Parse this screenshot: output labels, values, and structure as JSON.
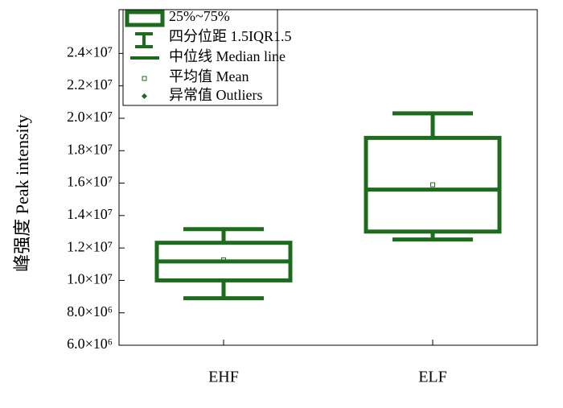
{
  "chart_data": {
    "type": "box",
    "y_label": "峰强度  Peak intensity",
    "categories": [
      "EHF",
      "ELF"
    ],
    "color": "#1d6b1d",
    "boxes": [
      {
        "low": 8900000,
        "q1": 10000000,
        "median": 11170000,
        "q3": 12320000,
        "high": 13160000,
        "mean": 11270000
      },
      {
        "low": 12520000,
        "q1": 13010000,
        "median": 15600000,
        "q3": 18790000,
        "high": 20300000,
        "mean": 15900000
      }
    ],
    "ylim": [
      6000000,
      26700000
    ],
    "yticks": [
      {
        "value": 6000000,
        "label": "6.0×10⁶"
      },
      {
        "value": 8000000,
        "label": "8.0×10⁶"
      },
      {
        "value": 10000000,
        "label": "1.0×10⁷"
      },
      {
        "value": 12000000,
        "label": "1.2×10⁷"
      },
      {
        "value": 14000000,
        "label": "1.4×10⁷"
      },
      {
        "value": 16000000,
        "label": "1.6×10⁷"
      },
      {
        "value": 18000000,
        "label": "1.8×10⁷"
      },
      {
        "value": 20000000,
        "label": "2.0×10⁷"
      },
      {
        "value": 22000000,
        "label": "2.2×10⁷"
      },
      {
        "value": 24000000,
        "label": "2.4×10⁷"
      }
    ],
    "legend": [
      "25%~75%",
      "四分位距  1.5IQR1.5",
      "中位线  Median line",
      "平均值  Mean",
      "异常值  Outliers"
    ]
  }
}
